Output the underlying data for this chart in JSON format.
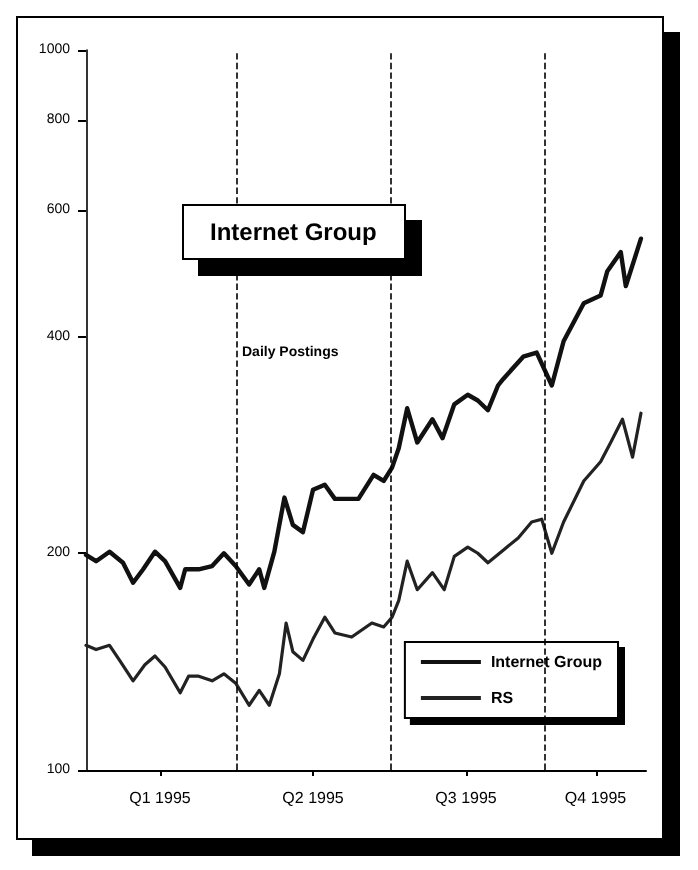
{
  "chart_data": {
    "type": "line",
    "title": "Internet Group",
    "annotations": [
      "Daily Postings"
    ],
    "xlim": [
      "1995-01-01",
      "1995-11-30"
    ],
    "xticks": [
      {
        "value": "1995-02-14",
        "label": "Q1 1995"
      },
      {
        "value": "1995-05-16",
        "label": "Q2 1995"
      },
      {
        "value": "1995-08-15",
        "label": "Q3 1995"
      },
      {
        "value": "1995-10-31",
        "label": "Q4 1995"
      }
    ],
    "ylim": [
      100,
      1000
    ],
    "yticks": [
      100,
      200,
      400,
      600,
      800,
      1000
    ],
    "log": "y",
    "grid": false,
    "legend": "bottom right",
    "line_style": "solid",
    "marker": "none",
    "ref_lines": [
      {
        "axis": "x",
        "value": "1995-04-01",
        "color": "#000000",
        "line_style": "dashed"
      },
      {
        "axis": "x",
        "value": "1995-07-01",
        "color": "#000000",
        "line_style": "dashed"
      },
      {
        "axis": "x",
        "value": "1995-10-01",
        "color": "#000000",
        "line_style": "dashed"
      }
    ],
    "series": [
      {
        "name": "Internet Group",
        "color": "#111111",
        "x": [
          "1995-01-01",
          "1995-01-07",
          "1995-01-15",
          "1995-01-23",
          "1995-01-29",
          "1995-02-04",
          "1995-02-11",
          "1995-02-17",
          "1995-02-26",
          "1995-03-01",
          "1995-03-09",
          "1995-03-17",
          "1995-03-24",
          "1995-03-31",
          "1995-04-08",
          "1995-04-14",
          "1995-04-17",
          "1995-04-23",
          "1995-04-29",
          "1995-05-04",
          "1995-05-10",
          "1995-05-16",
          "1995-05-23",
          "1995-05-29",
          "1995-06-12",
          "1995-06-21",
          "1995-06-27",
          "1995-07-02",
          "1995-07-06",
          "1995-07-11",
          "1995-07-17",
          "1995-07-26",
          "1995-08-01",
          "1995-08-08",
          "1995-08-16",
          "1995-08-22",
          "1995-08-28",
          "1995-09-03",
          "1995-09-06",
          "1995-09-18",
          "1995-09-26",
          "1995-10-05",
          "1995-10-12",
          "1995-10-24",
          "1995-11-03",
          "1995-11-07",
          "1995-11-15",
          "1995-11-18",
          "1995-11-27"
        ],
        "values": [
          199,
          195,
          201,
          194,
          182,
          190,
          201,
          195,
          179,
          190,
          190,
          192,
          200,
          192,
          181,
          190,
          179,
          201,
          239,
          219,
          214,
          245,
          249,
          238,
          238,
          257,
          252,
          263,
          280,
          318,
          285,
          307,
          289,
          322,
          332,
          326,
          316,
          342,
          349,
          375,
          380,
          342,
          394,
          445,
          456,
          493,
          524,
          470,
          547
        ]
      },
      {
        "name": "RS",
        "color": "#222222",
        "x": [
          "1995-01-01",
          "1995-01-07",
          "1995-01-15",
          "1995-01-21",
          "1995-01-29",
          "1995-02-05",
          "1995-02-11",
          "1995-02-17",
          "1995-02-26",
          "1995-03-03",
          "1995-03-09",
          "1995-03-17",
          "1995-03-24",
          "1995-03-31",
          "1995-04-08",
          "1995-04-14",
          "1995-04-20",
          "1995-04-26",
          "1995-04-30",
          "1995-05-04",
          "1995-05-10",
          "1995-05-16",
          "1995-05-23",
          "1995-05-29",
          "1995-06-08",
          "1995-06-20",
          "1995-06-27",
          "1995-07-02",
          "1995-07-06",
          "1995-07-11",
          "1995-07-17",
          "1995-07-26",
          "1995-08-02",
          "1995-08-08",
          "1995-08-16",
          "1995-08-22",
          "1995-08-28",
          "1995-09-05",
          "1995-09-15",
          "1995-09-23",
          "1995-09-29",
          "1995-10-05",
          "1995-10-12",
          "1995-10-24",
          "1995-11-03",
          "1995-11-09",
          "1995-11-16",
          "1995-11-22",
          "1995-11-27"
        ],
        "values": [
          149,
          147,
          149,
          142,
          133,
          140,
          144,
          139,
          128,
          135,
          135,
          133,
          136,
          132,
          123,
          129,
          123,
          136,
          160,
          146,
          142,
          152,
          163,
          155,
          153,
          160,
          158,
          163,
          172,
          195,
          178,
          188,
          178,
          198,
          204,
          200,
          194,
          201,
          210,
          221,
          223,
          200,
          221,
          252,
          268,
          285,
          307,
          272,
          313
        ]
      }
    ]
  }
}
